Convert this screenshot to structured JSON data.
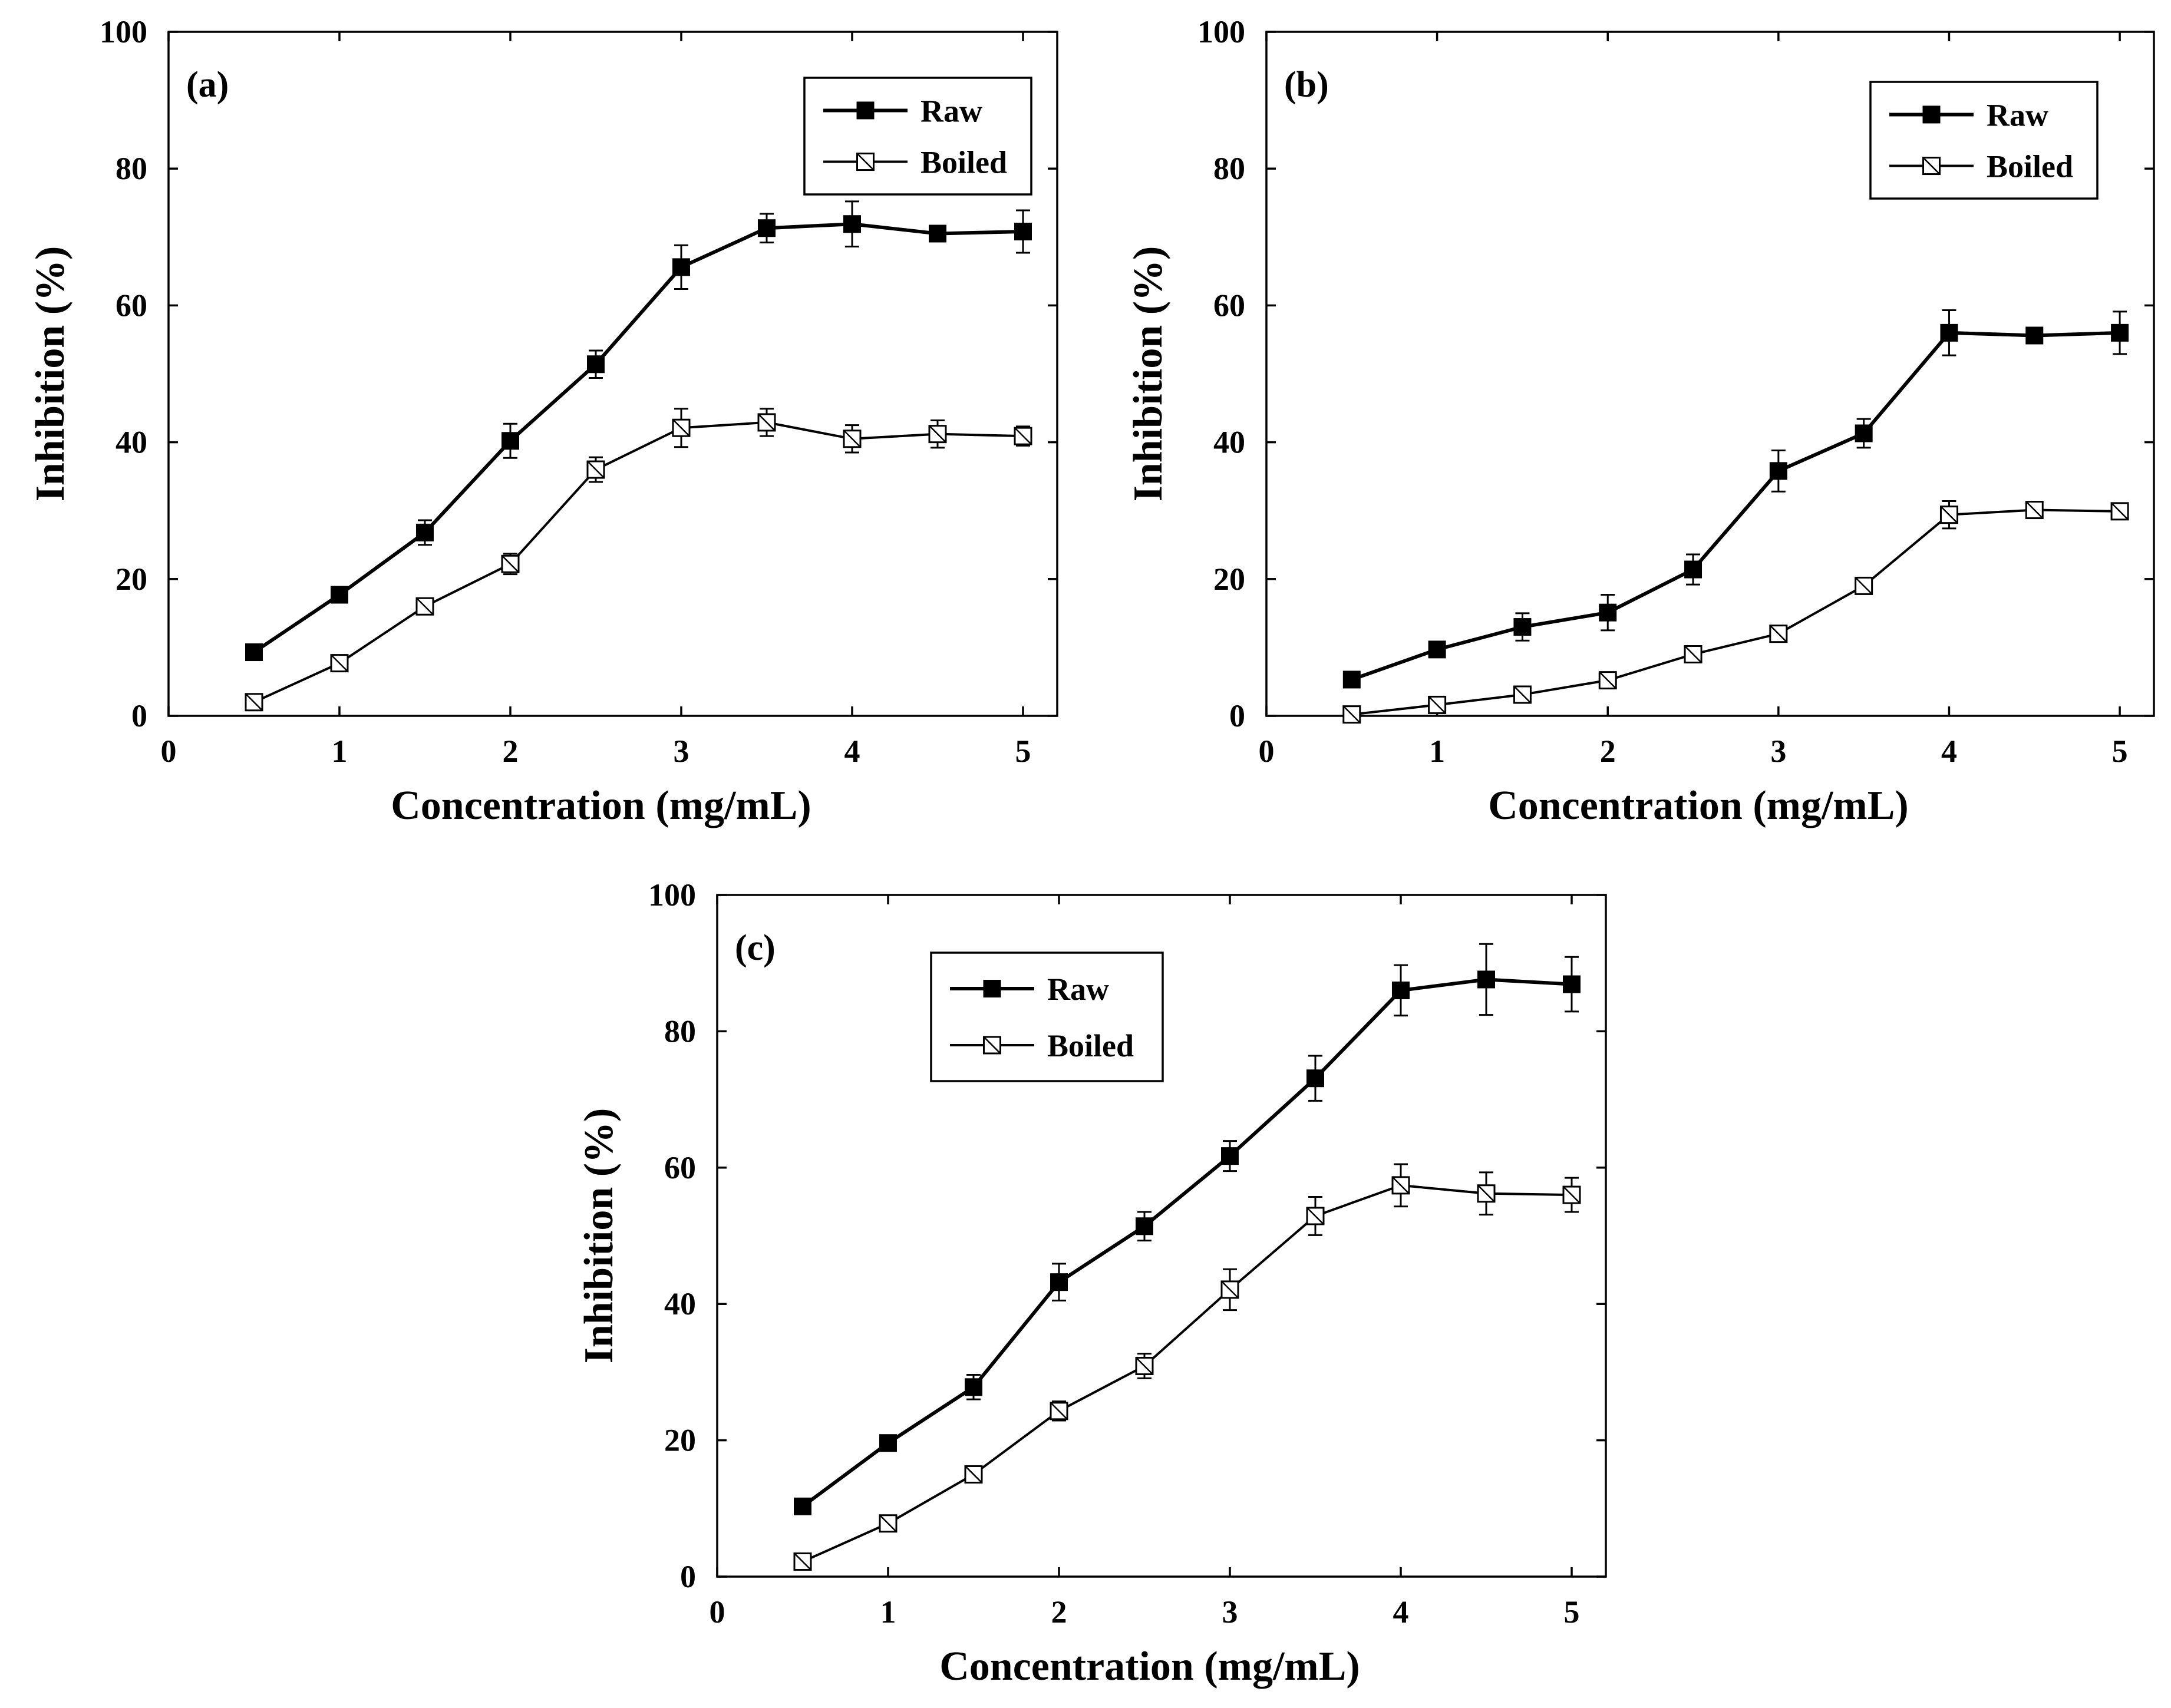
{
  "chart_data": [
    {
      "type": "line",
      "panel_label": "(a)",
      "xlabel": "Concentration (mg/mL)",
      "ylabel": "Inhibition (%)",
      "xlim": [
        0,
        5.2
      ],
      "ylim": [
        0,
        100
      ],
      "x_ticks": [
        0,
        1,
        2,
        3,
        4,
        5
      ],
      "y_ticks": [
        0,
        20,
        40,
        60,
        80,
        100
      ],
      "legend_position": "top-right",
      "x": [
        0.5,
        1,
        1.5,
        2,
        2.5,
        3,
        3.5,
        4,
        4.5,
        5
      ],
      "series": [
        {
          "name": "Raw",
          "marker": "filled-square",
          "values": [
            9.3,
            17.7,
            26.8,
            40.2,
            51.4,
            65.6,
            71.3,
            71.9,
            70.5,
            70.8
          ],
          "errors": [
            0.8,
            1.0,
            1.8,
            2.5,
            2.0,
            3.2,
            2.1,
            3.3,
            1.0,
            3.1
          ]
        },
        {
          "name": "Boiled",
          "marker": "hollow-square",
          "values": [
            2.0,
            7.7,
            16.0,
            22.2,
            36.0,
            42.1,
            42.9,
            40.5,
            41.2,
            40.9
          ],
          "errors": [
            0.5,
            0.6,
            0.6,
            1.5,
            1.8,
            2.8,
            2.0,
            2.0,
            2.0,
            1.4
          ]
        }
      ]
    },
    {
      "type": "line",
      "panel_label": "(b)",
      "xlabel": "Concentration (mg/mL)",
      "ylabel": "Inhibition (%)",
      "xlim": [
        0,
        5.2
      ],
      "ylim": [
        0,
        100
      ],
      "x_ticks": [
        0,
        1,
        2,
        3,
        4,
        5
      ],
      "y_ticks": [
        0,
        20,
        40,
        60,
        80,
        100
      ],
      "legend_position": "top-right",
      "x": [
        0.5,
        1,
        1.5,
        2,
        2.5,
        3,
        3.5,
        4,
        4.5,
        5
      ],
      "series": [
        {
          "name": "Raw",
          "marker": "filled-square",
          "values": [
            5.3,
            9.7,
            13.0,
            15.1,
            21.4,
            35.8,
            41.3,
            56.0,
            55.6,
            56.0
          ],
          "errors": [
            0.5,
            1.0,
            2.0,
            2.6,
            2.2,
            3.0,
            2.1,
            3.3,
            1.0,
            3.1
          ]
        },
        {
          "name": "Boiled",
          "marker": "hollow-square",
          "values": [
            0.2,
            1.6,
            3.1,
            5.2,
            9.0,
            12.0,
            19.0,
            29.4,
            30.1,
            29.9
          ],
          "errors": [
            0.3,
            0.4,
            0.5,
            0.5,
            0.6,
            0.6,
            0.6,
            2.0,
            0.8,
            1.1
          ]
        }
      ]
    },
    {
      "type": "line",
      "panel_label": "(c)",
      "xlabel": "Concentration (mg/mL)",
      "ylabel": "Inhibition (%)",
      "xlim": [
        0,
        5.2
      ],
      "ylim": [
        0,
        100
      ],
      "x_ticks": [
        0,
        1,
        2,
        3,
        4,
        5
      ],
      "y_ticks": [
        0,
        20,
        40,
        60,
        80,
        100
      ],
      "legend_position": "top-left",
      "x": [
        0.5,
        1,
        1.5,
        2,
        2.5,
        3,
        3.5,
        4,
        4.5,
        5
      ],
      "series": [
        {
          "name": "Raw",
          "marker": "filled-square",
          "values": [
            10.3,
            19.6,
            27.8,
            43.2,
            51.4,
            61.7,
            73.1,
            86.0,
            87.6,
            86.9
          ],
          "errors": [
            0.6,
            0.8,
            1.8,
            2.7,
            2.1,
            2.2,
            3.3,
            3.7,
            5.2,
            4.0
          ]
        },
        {
          "name": "Boiled",
          "marker": "hollow-square",
          "values": [
            2.2,
            7.8,
            15.0,
            24.3,
            30.9,
            42.1,
            52.9,
            57.4,
            56.2,
            56.0
          ],
          "errors": [
            0.5,
            0.6,
            0.6,
            1.4,
            1.8,
            3.0,
            2.8,
            3.1,
            3.1,
            2.5
          ]
        }
      ]
    }
  ]
}
